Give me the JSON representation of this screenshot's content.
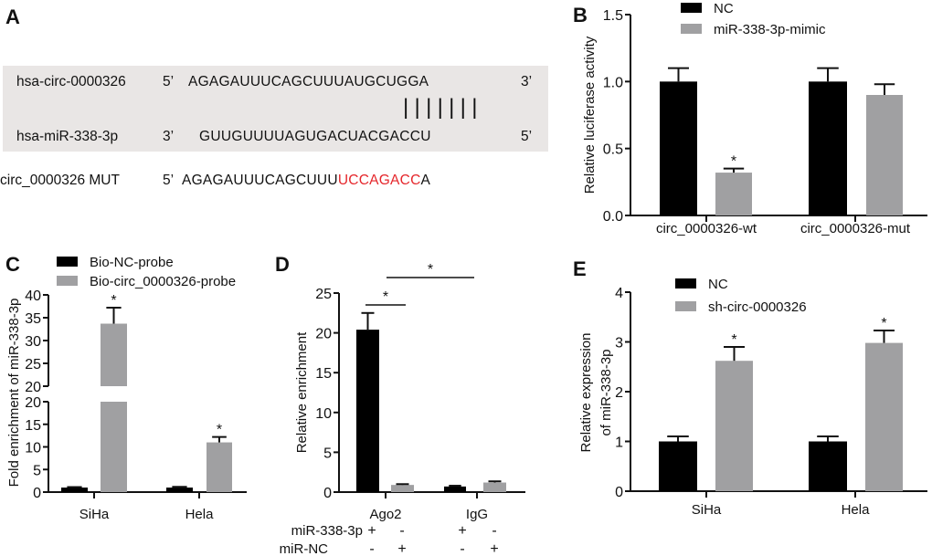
{
  "panels": {
    "A": {
      "letter": "A",
      "circ_name": "hsa-circ-0000326",
      "circ_end5": "5’",
      "circ_seq": "AGAGAUUUCAGCUUUAUGCUGGA",
      "circ_end3": "3’",
      "mir_name": "hsa-miR-338-3p",
      "mir_end3": "3’",
      "mir_seq": "GUUGUUUUAGUGACUACGACCU",
      "mir_end5": "5’",
      "pairing": "|||||||",
      "mut_name": "circ_0000326 MUT",
      "mut_end5": "5’",
      "mut_seq_prefix": "AGAGAUUUCAGCUUU",
      "mut_seq_mutated": "UCCAGACC",
      "mut_seq_suffix": "A",
      "mut_color": "#e5262b",
      "box_color": "#e9e6e5"
    }
  },
  "chart_data": [
    {
      "id": "B",
      "letter": "B",
      "type": "bar",
      "ylabel": [
        "Relative luciferase activity"
      ],
      "ylim": [
        0,
        1.5
      ],
      "yticks": [
        "0.0",
        "0.5",
        "1.0",
        "1.5"
      ],
      "ytick_values": [
        0,
        0.5,
        1.0,
        1.5
      ],
      "categories": [
        "circ_0000326-wt",
        "circ_0000326-mut"
      ],
      "legend_placement": "top",
      "series": [
        {
          "name": "NC",
          "color": "#000000",
          "values": [
            1.0,
            1.0
          ],
          "errors": [
            0.1,
            0.1
          ],
          "stars": [
            "",
            ""
          ]
        },
        {
          "name": "miR-338-3p-mimic",
          "color": "#a0a0a2",
          "values": [
            0.32,
            0.9
          ],
          "errors": [
            0.03,
            0.08
          ],
          "stars": [
            "*",
            ""
          ]
        }
      ]
    },
    {
      "id": "C",
      "letter": "C",
      "type": "bar",
      "ylabel": [
        "Fold enrichment of miR-338-3p"
      ],
      "ylim": [
        0,
        40
      ],
      "axis_break": [
        20,
        20
      ],
      "yticks": [
        "0",
        "5",
        "10",
        "15",
        "20",
        "20",
        "25",
        "30",
        "35",
        "40"
      ],
      "categories": [
        "SiHa",
        "Hela"
      ],
      "legend_placement": "top",
      "series": [
        {
          "name": "Bio-NC-probe",
          "color": "#000000",
          "values": [
            1.0,
            1.0
          ],
          "errors": [
            0.1,
            0.15
          ],
          "stars": [
            "",
            ""
          ]
        },
        {
          "name": "Bio-circ_0000326-probe",
          "color": "#a0a0a2",
          "values": [
            33.7,
            11.0
          ],
          "errors": [
            3.5,
            1.2
          ],
          "stars": [
            "*",
            "*"
          ]
        }
      ]
    },
    {
      "id": "D",
      "letter": "D",
      "type": "bar",
      "ylabel": [
        "Relative enrichment"
      ],
      "ylim": [
        0,
        25
      ],
      "yticks": [
        "0",
        "5",
        "10",
        "15",
        "20",
        "25"
      ],
      "ytick_values": [
        0,
        5,
        10,
        15,
        20,
        25
      ],
      "categories": [
        "Ago2",
        "IgG"
      ],
      "series": [
        {
          "color": "#000000",
          "values": [
            20.4,
            0.7
          ],
          "errors": [
            2.1,
            0.1
          ],
          "stars": [
            "",
            ""
          ]
        },
        {
          "color": "#a0a0a2",
          "values": [
            0.9,
            1.2
          ],
          "errors": [
            0.1,
            0.15
          ],
          "stars": [
            "",
            ""
          ]
        }
      ],
      "condition_rows": [
        {
          "label": "miR-338-3p",
          "marks": [
            "+",
            "-",
            "+",
            "-"
          ]
        },
        {
          "label": "miR-NC",
          "marks": [
            "-",
            "+",
            "-",
            "+"
          ]
        }
      ],
      "significance": [
        {
          "from": "Ago2 miR-338-3p",
          "to": "Ago2 miR-NC",
          "label": "*"
        },
        {
          "from": "Ago2 miR-NC",
          "to": "IgG miR-338-3p",
          "label": "*"
        }
      ]
    },
    {
      "id": "E",
      "letter": "E",
      "type": "bar",
      "ylabel": [
        "Relative expression",
        "of miR-338-3p"
      ],
      "ylim": [
        0,
        4
      ],
      "yticks": [
        "0",
        "1",
        "2",
        "3",
        "4"
      ],
      "ytick_values": [
        0,
        1,
        2,
        3,
        4
      ],
      "categories": [
        "SiHa",
        "Hela"
      ],
      "legend_placement": "top",
      "series": [
        {
          "name": "NC",
          "color": "#000000",
          "values": [
            1.0,
            1.0
          ],
          "errors": [
            0.1,
            0.1
          ],
          "stars": [
            "",
            ""
          ]
        },
        {
          "name": "sh-circ-0000326",
          "color": "#a0a0a2",
          "values": [
            2.62,
            2.98
          ],
          "errors": [
            0.28,
            0.25
          ],
          "stars": [
            "*",
            "*"
          ]
        }
      ]
    }
  ]
}
